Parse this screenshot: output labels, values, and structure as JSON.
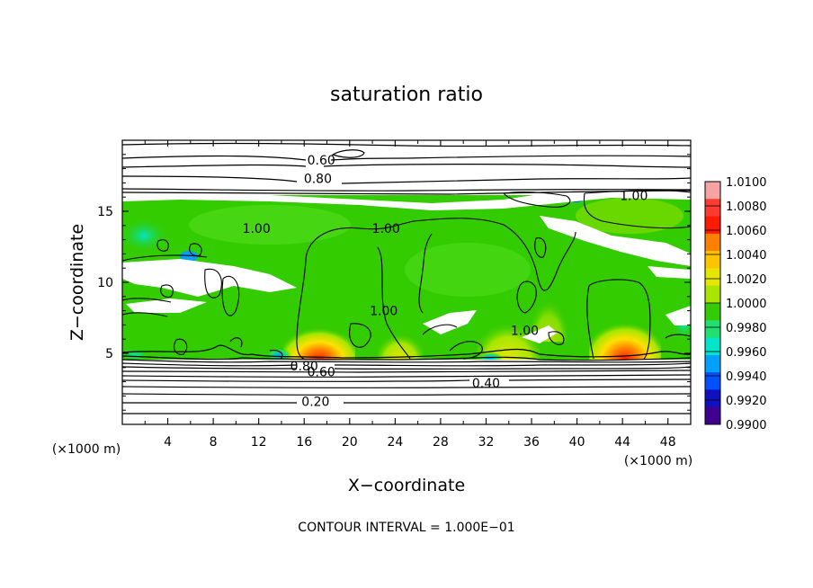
{
  "chart_data": {
    "type": "heatmap",
    "title": "saturation ratio",
    "xlabel": "X−coordinate",
    "ylabel": "Z−coordinate",
    "x_unit": "(×1000 m)",
    "y_unit": "(×1000 m)",
    "xlim": [
      0,
      50
    ],
    "ylim": [
      0,
      20
    ],
    "xticks": [
      4,
      8,
      12,
      16,
      20,
      24,
      28,
      32,
      36,
      40,
      44,
      48
    ],
    "yticks": [
      5,
      10,
      15
    ],
    "footer": "CONTOUR INTERVAL = 1.000E−01",
    "contour_interval": 0.1,
    "colorbar": {
      "min": 0.99,
      "max": 1.01,
      "ticks": [
        "1.0100",
        "1.0080",
        "1.0060",
        "1.0040",
        "1.0020",
        "1.0000",
        "0.9980",
        "0.9960",
        "0.9940",
        "0.9920",
        "0.9900"
      ],
      "colors": [
        "#f5a3a3",
        "#ff3b30",
        "#ff1a00",
        "#ff7f00",
        "#ffc400",
        "#e6e600",
        "#a8e600",
        "#33cc00",
        "#22e070",
        "#00e6c8",
        "#00a0ff",
        "#0050ff",
        "#1010c0",
        "#400090"
      ]
    },
    "contour_labels": [
      {
        "text": "0.60",
        "x": 17.5,
        "z": 18.6
      },
      {
        "text": "0.80",
        "x": 17.2,
        "z": 17.3
      },
      {
        "text": "1.00",
        "x": 45.0,
        "z": 16.1
      },
      {
        "text": "1.00",
        "x": 11.8,
        "z": 13.8
      },
      {
        "text": "1.00",
        "x": 23.2,
        "z": 13.8
      },
      {
        "text": "1.00",
        "x": 23.0,
        "z": 8.0
      },
      {
        "text": "1.00",
        "x": 35.4,
        "z": 6.6
      },
      {
        "text": "0.80",
        "x": 16.0,
        "z": 4.1
      },
      {
        "text": "0.60",
        "x": 17.5,
        "z": 3.7
      },
      {
        "text": "0.40",
        "x": 32.0,
        "z": 2.9
      },
      {
        "text": "0.20",
        "x": 17.0,
        "z": 1.6
      }
    ]
  }
}
